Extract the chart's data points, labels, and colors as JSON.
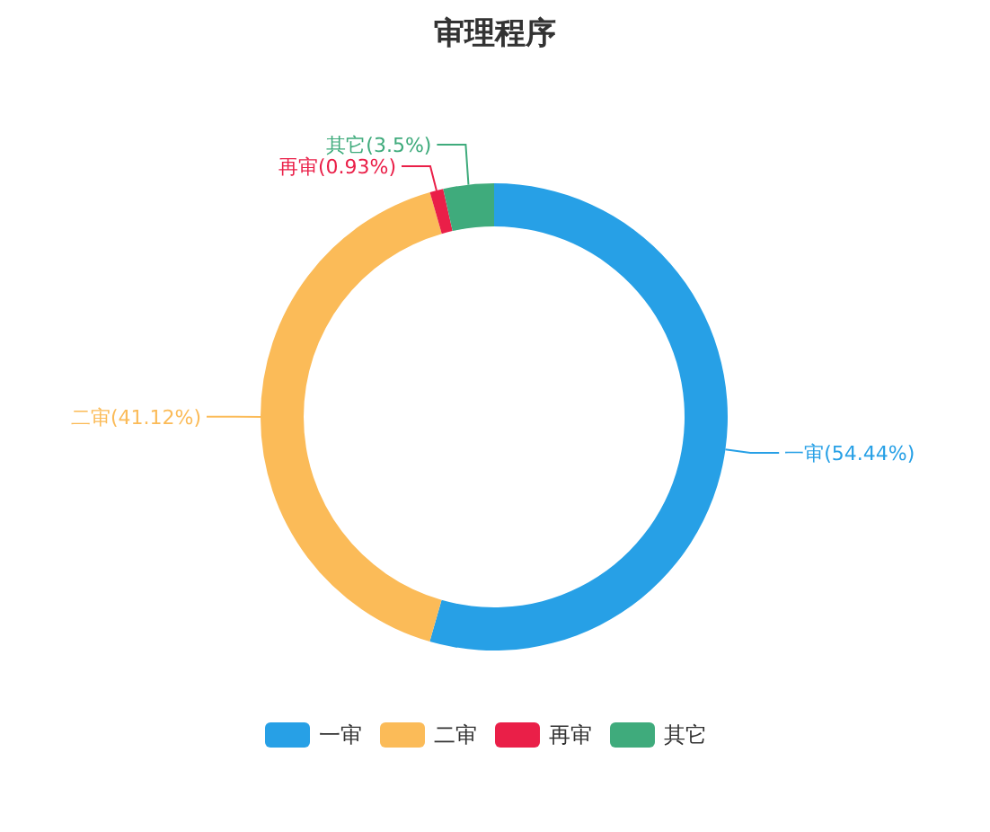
{
  "chart_data": {
    "type": "donut",
    "title": "审理程序",
    "categories": [
      "一审",
      "二审",
      "再审",
      "其它"
    ],
    "values": [
      54.44,
      41.12,
      0.93,
      3.5
    ],
    "value_labels": [
      "一审(54.44%)",
      "二审(41.12%)",
      "再审(0.93%)",
      "其它(3.5%)"
    ],
    "colors": [
      "#27a0e6",
      "#fbbb58",
      "#ea1f48",
      "#3fab7c"
    ],
    "legend": "bottom"
  }
}
